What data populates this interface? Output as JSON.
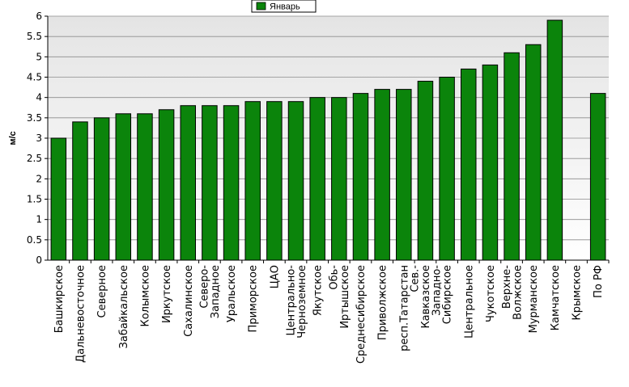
{
  "chart_data": {
    "type": "bar",
    "ylabel": "м/с",
    "ylim": [
      0,
      6
    ],
    "yticks": [
      "0",
      "0.5",
      "1",
      "1.5",
      "2",
      "2.5",
      "3",
      "3.5",
      "4",
      "4.5",
      "5",
      "5.5",
      "6"
    ],
    "grid": "horizontal",
    "legend_position": "top-center",
    "bar_color": "#0b840b",
    "categories": [
      [
        "Башкирское"
      ],
      [
        "Дальневосточное"
      ],
      [
        "Северное"
      ],
      [
        "Забайкальское"
      ],
      [
        "Колымское"
      ],
      [
        "Иркутское"
      ],
      [
        "Сахалинское"
      ],
      [
        "Северо-",
        "Западное"
      ],
      [
        "Уральское"
      ],
      [
        "Приморское"
      ],
      [
        "ЦАО"
      ],
      [
        "Центрально-",
        "Черноземное"
      ],
      [
        "Якутское"
      ],
      [
        "Обь-",
        "Иртышское"
      ],
      [
        "Среднесибирское"
      ],
      [
        "Приволжское"
      ],
      [
        "респ.Татарстан"
      ],
      [
        "Сев.-",
        "Кавказское",
        "Западно-"
      ],
      [
        "Сибирское"
      ],
      [
        "Центральное"
      ],
      [
        "Чукотское"
      ],
      [
        "Верхне-",
        "Волжское"
      ],
      [
        "Мурманское"
      ],
      [
        "Камчатское"
      ],
      [
        "Крымское"
      ],
      [
        "По РФ"
      ]
    ],
    "series": [
      {
        "name": "Январь",
        "values": [
          3.0,
          3.4,
          3.5,
          3.6,
          3.6,
          3.7,
          3.8,
          3.8,
          3.8,
          3.9,
          3.9,
          3.9,
          4.0,
          4.0,
          4.1,
          4.2,
          4.2,
          4.4,
          4.5,
          4.7,
          4.8,
          5.1,
          5.3,
          5.9,
          null,
          4.1
        ]
      }
    ]
  }
}
